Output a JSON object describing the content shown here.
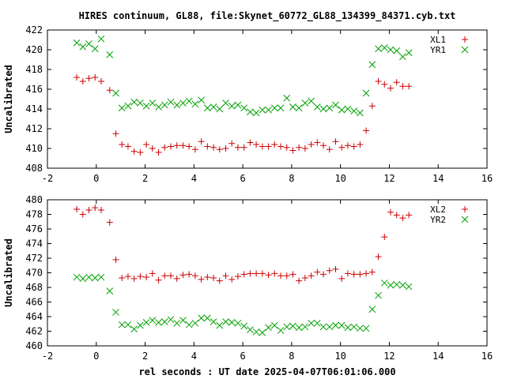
{
  "figure": {
    "title": "HIRES continuum, GL88, file:Skynet_60772_GL88_134399_84371.cyb.txt",
    "xlabel": "rel seconds : UT date 2025-04-07T06:01:06.000"
  },
  "colors": {
    "L": "#cc0000",
    "R": "#00a000"
  },
  "chart_data": [
    {
      "type": "scatter",
      "title": "",
      "ylabel": "Uncalibrated",
      "xlim": [
        -2,
        16
      ],
      "ylim": [
        408,
        422
      ],
      "xticks": [
        "-2",
        "0",
        "2",
        "4",
        "6",
        "8",
        "10",
        "12",
        "14",
        "16"
      ],
      "yticks": [
        "408",
        "410",
        "412",
        "414",
        "416",
        "418",
        "420",
        "422"
      ],
      "legend_position": "top-right",
      "series": [
        {
          "name": "XL1",
          "marker": "plus",
          "color": "#cc0000",
          "x": [
            -0.8,
            -0.55,
            -0.3,
            -0.05,
            0.2,
            0.55,
            0.8,
            1.05,
            1.3,
            1.55,
            1.8,
            2.05,
            2.3,
            2.55,
            2.8,
            3.05,
            3.3,
            3.55,
            3.8,
            4.05,
            4.3,
            4.55,
            4.8,
            5.05,
            5.3,
            5.55,
            5.8,
            6.05,
            6.3,
            6.55,
            6.8,
            7.05,
            7.3,
            7.55,
            7.8,
            8.05,
            8.3,
            8.55,
            8.8,
            9.05,
            9.3,
            9.55,
            9.8,
            10.05,
            10.3,
            10.55,
            10.8,
            11.05,
            11.3,
            11.55,
            11.8,
            12.05,
            12.3,
            12.55,
            12.8,
            13.05,
            13.3,
            13.55,
            13.8
          ],
          "y": [
            417.2,
            416.8,
            417.1,
            417.2,
            416.8,
            415.9,
            411.5,
            410.4,
            410.2,
            409.7,
            409.6,
            410.4,
            410.0,
            409.6,
            410.1,
            410.2,
            410.3,
            410.3,
            410.2,
            409.9,
            410.7,
            410.2,
            410.1,
            409.9,
            410.0,
            410.5,
            410.1,
            410.1,
            410.6,
            410.4,
            410.2,
            410.2,
            410.4,
            410.2,
            410.1,
            409.8,
            410.1,
            410.0,
            410.4,
            410.6,
            410.3,
            409.9,
            410.7,
            410.1,
            410.3,
            410.2,
            410.4,
            411.8,
            414.3,
            416.8,
            416.5,
            416.1,
            416.7,
            416.3,
            416.3,
            null,
            null,
            null,
            null
          ]
        },
        {
          "name": "YR1",
          "marker": "x",
          "color": "#00a000",
          "x": [
            -0.8,
            -0.55,
            -0.3,
            -0.05,
            0.2,
            0.55,
            0.8,
            1.05,
            1.3,
            1.55,
            1.8,
            2.05,
            2.3,
            2.55,
            2.8,
            3.05,
            3.3,
            3.55,
            3.8,
            4.05,
            4.3,
            4.55,
            4.8,
            5.05,
            5.3,
            5.55,
            5.8,
            6.05,
            6.3,
            6.55,
            6.8,
            7.05,
            7.3,
            7.55,
            7.8,
            8.05,
            8.3,
            8.55,
            8.8,
            9.05,
            9.3,
            9.55,
            9.8,
            10.05,
            10.3,
            10.55,
            10.8,
            11.05,
            11.3,
            11.55,
            11.8,
            12.05,
            12.3,
            12.55,
            12.8,
            13.05,
            13.3,
            13.55,
            13.8
          ],
          "y": [
            420.7,
            420.3,
            420.6,
            420.1,
            421.1,
            419.5,
            415.6,
            414.1,
            414.3,
            414.7,
            414.6,
            414.3,
            414.6,
            414.2,
            414.4,
            414.7,
            414.4,
            414.6,
            414.8,
            414.5,
            414.9,
            414.1,
            414.2,
            414.0,
            414.6,
            414.3,
            414.4,
            414.1,
            413.7,
            413.6,
            413.9,
            413.9,
            414.1,
            414.1,
            415.1,
            414.2,
            414.1,
            414.6,
            414.8,
            414.2,
            414.0,
            414.1,
            414.4,
            413.9,
            414.0,
            413.8,
            413.6,
            415.6,
            418.5,
            420.1,
            420.2,
            420.0,
            419.9,
            419.3,
            419.7,
            null,
            null,
            null,
            null
          ]
        }
      ]
    },
    {
      "type": "scatter",
      "title": "",
      "ylabel": "Uncalibrated",
      "xlim": [
        -2,
        16
      ],
      "ylim": [
        460,
        480
      ],
      "xticks": [
        "-2",
        "0",
        "2",
        "4",
        "6",
        "8",
        "10",
        "12",
        "14",
        "16"
      ],
      "yticks": [
        "460",
        "462",
        "464",
        "466",
        "468",
        "470",
        "472",
        "474",
        "476",
        "478",
        "480"
      ],
      "legend_position": "top-right",
      "series": [
        {
          "name": "XL2",
          "marker": "plus",
          "color": "#cc0000",
          "x": [
            -0.8,
            -0.55,
            -0.3,
            -0.05,
            0.2,
            0.55,
            0.8,
            1.05,
            1.3,
            1.55,
            1.8,
            2.05,
            2.3,
            2.55,
            2.8,
            3.05,
            3.3,
            3.55,
            3.8,
            4.05,
            4.3,
            4.55,
            4.8,
            5.05,
            5.3,
            5.55,
            5.8,
            6.05,
            6.3,
            6.55,
            6.8,
            7.05,
            7.3,
            7.55,
            7.8,
            8.05,
            8.3,
            8.55,
            8.8,
            9.05,
            9.3,
            9.55,
            9.8,
            10.05,
            10.3,
            10.55,
            10.8,
            11.05,
            11.3,
            11.55,
            11.8,
            12.05,
            12.3,
            12.55,
            12.8,
            13.05,
            13.3,
            13.55,
            13.8
          ],
          "y": [
            478.7,
            478.0,
            478.6,
            478.9,
            478.6,
            476.9,
            471.8,
            469.3,
            469.5,
            469.2,
            469.5,
            469.4,
            469.9,
            469.0,
            469.6,
            469.6,
            469.2,
            469.7,
            469.8,
            469.6,
            469.1,
            469.4,
            469.3,
            468.9,
            469.6,
            469.1,
            469.5,
            469.8,
            469.9,
            469.9,
            469.9,
            469.7,
            469.9,
            469.6,
            469.6,
            469.8,
            468.9,
            469.3,
            469.6,
            470.1,
            469.8,
            470.3,
            470.5,
            469.2,
            469.9,
            469.8,
            469.8,
            469.9,
            470.1,
            472.2,
            474.9,
            478.3,
            477.9,
            477.5,
            477.9,
            null,
            null,
            null,
            null
          ]
        },
        {
          "name": "YR2",
          "marker": "x",
          "color": "#00a000",
          "x": [
            -0.8,
            -0.55,
            -0.3,
            -0.05,
            0.2,
            0.55,
            0.8,
            1.05,
            1.3,
            1.55,
            1.8,
            2.05,
            2.3,
            2.55,
            2.8,
            3.05,
            3.3,
            3.55,
            3.8,
            4.05,
            4.3,
            4.55,
            4.8,
            5.05,
            5.3,
            5.55,
            5.8,
            6.05,
            6.3,
            6.55,
            6.8,
            7.05,
            7.3,
            7.55,
            7.8,
            8.05,
            8.3,
            8.55,
            8.8,
            9.05,
            9.3,
            9.55,
            9.8,
            10.05,
            10.3,
            10.55,
            10.8,
            11.05,
            11.3,
            11.55,
            11.8,
            12.05,
            12.3,
            12.55,
            12.8,
            13.05,
            13.3,
            13.55,
            13.8
          ],
          "y": [
            469.4,
            469.2,
            469.4,
            469.3,
            469.4,
            467.5,
            464.6,
            462.9,
            462.9,
            462.3,
            462.8,
            463.2,
            463.5,
            463.2,
            463.3,
            463.6,
            463.1,
            463.5,
            462.9,
            463.1,
            463.8,
            463.8,
            463.3,
            462.8,
            463.3,
            463.2,
            463.1,
            462.7,
            462.2,
            461.9,
            461.8,
            462.5,
            462.8,
            462.1,
            462.6,
            462.7,
            462.5,
            462.6,
            463.1,
            463.1,
            462.6,
            462.6,
            462.8,
            462.8,
            462.5,
            462.6,
            462.4,
            462.4,
            465.0,
            466.9,
            468.6,
            468.3,
            468.4,
            468.3,
            468.1,
            null,
            null,
            null,
            null
          ]
        }
      ]
    }
  ]
}
